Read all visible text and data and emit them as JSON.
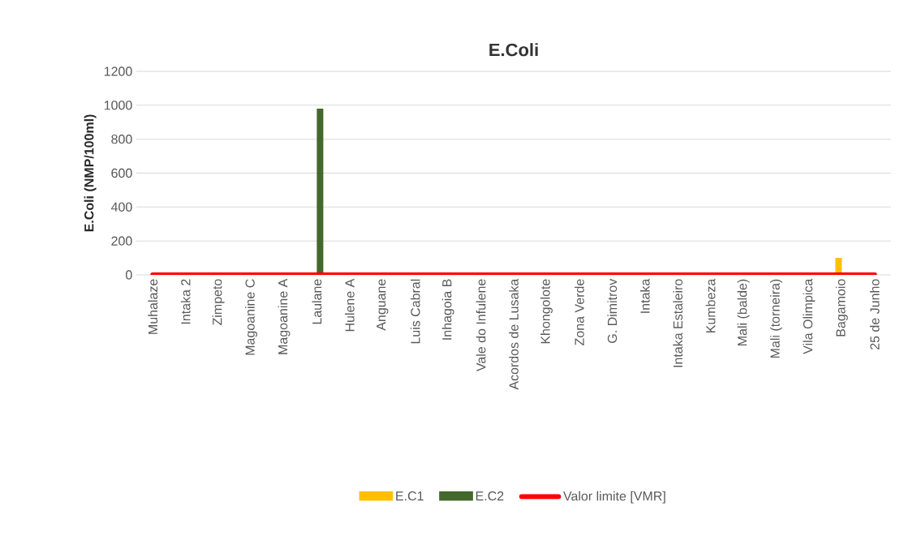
{
  "chart_data": {
    "type": "bar",
    "title": "E.Coli",
    "ylabel": "E.Coli (NMP/100ml)",
    "categories": [
      "Muhalaze",
      "Intaka 2",
      "Zimpeto",
      "Magoanine C",
      "Magoanine A",
      "Laulane",
      "Hulene A",
      "Anguane",
      "Luis Cabral",
      "Inhagoia B",
      "Vale do Infulene",
      "Acordos de Lusaka",
      "Khongolote",
      "Zona Verde",
      "G. Dimitrov",
      "Intaka",
      "Intaka Estaleiro",
      "Kumbeza",
      "Mali (balde)",
      "Mali (torneira)",
      "Vila Olimpica",
      "Bagamoio",
      "25 de Junho"
    ],
    "series": [
      {
        "name": "E.C1",
        "color": "#ffc000",
        "values": [
          0,
          0,
          0,
          0,
          0,
          0,
          0,
          0,
          0,
          0,
          0,
          0,
          0,
          0,
          0,
          0,
          0,
          0,
          0,
          0,
          0,
          100,
          null
        ]
      },
      {
        "name": "E.C2",
        "color": "#43682b",
        "values": [
          0,
          0,
          0,
          0,
          0,
          980,
          0,
          0,
          0,
          0,
          0,
          0,
          0,
          0,
          0,
          0,
          0,
          0,
          0,
          0,
          0,
          0,
          0
        ]
      },
      {
        "name": "Valor limite [VMR]",
        "type": "line",
        "color": "#ff0000",
        "values": [
          0,
          0,
          0,
          0,
          0,
          0,
          0,
          0,
          0,
          0,
          0,
          0,
          0,
          0,
          0,
          0,
          0,
          0,
          0,
          0,
          0,
          0,
          0
        ]
      }
    ],
    "ylim": [
      0,
      1200
    ],
    "yticks": [
      0,
      200,
      400,
      600,
      800,
      1000,
      1200
    ],
    "grid": "y",
    "legend": "bottom"
  }
}
